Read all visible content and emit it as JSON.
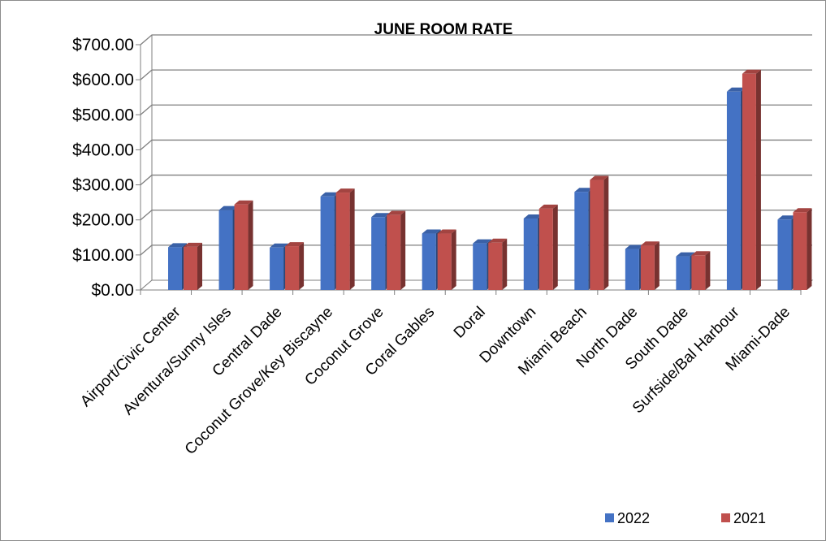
{
  "chart_data": {
    "type": "bar",
    "title": "JUNE ROOM RATE",
    "xlabel": "",
    "ylabel": "",
    "ylim": [
      0,
      700
    ],
    "y_ticks": [
      "$0.00",
      "$100.00",
      "$200.00",
      "$300.00",
      "$400.00",
      "$500.00",
      "$600.00",
      "$700.00"
    ],
    "categories": [
      "Airport/Civic Center",
      "Aventura/Sunny Isles",
      "Central Dade",
      "Coconut Grove/Key Biscayne",
      "Coconut Grove",
      "Coral Gables",
      "Doral",
      "Downtown",
      "Miami Beach",
      "North Dade",
      "South Dade",
      "Surfside/Bal Harbour",
      "Miami-Dade"
    ],
    "series": [
      {
        "name": "2022",
        "color": "#4472c4",
        "values": [
          122,
          228,
          121,
          267,
          208,
          161,
          133,
          204,
          280,
          117,
          96,
          566,
          201
        ]
      },
      {
        "name": "2021",
        "color": "#c0504d",
        "values": [
          123,
          244,
          125,
          278,
          214,
          161,
          135,
          232,
          314,
          127,
          99,
          617,
          222
        ]
      }
    ],
    "grid": true,
    "legend_position": "bottom-right",
    "three_d": true
  }
}
